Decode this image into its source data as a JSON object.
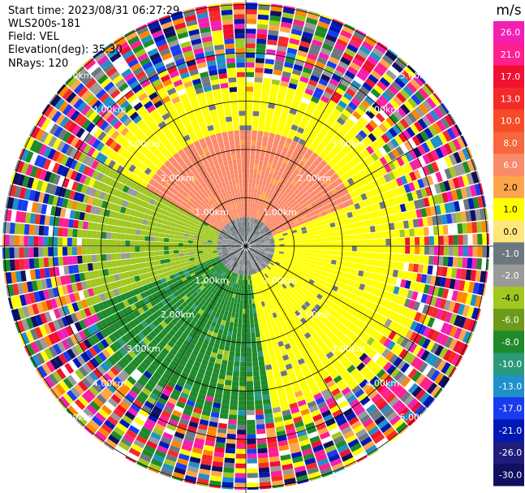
{
  "header": {
    "start_time": "Start time: 2023/08/31 06:27:29",
    "instrument": "WLS200s-181",
    "field": "Field: VEL",
    "elevation": "Elevation(deg): 35.30",
    "nrays": "NRays: 120"
  },
  "colorbar": {
    "unit": "m/s",
    "ticks": [
      "26.0",
      "21.0",
      "17.0",
      "13.0",
      "10.0",
      "8.0",
      "6.0",
      "2.0",
      "1.0",
      "0.0",
      "-1.0",
      "-2.0",
      "-4.0",
      "-6.0",
      "-8.0",
      "-10.0",
      "-13.0",
      "-17.0",
      "-21.0",
      "-26.0",
      "-30.0"
    ],
    "colors": [
      "#f21fb3",
      "#ff1f8f",
      "#f01030",
      "#f42a2a",
      "#f64a28",
      "#f7663c",
      "#fb8a6a",
      "#fca64a",
      "#ffff00",
      "#ffe67a",
      "#6c7880",
      "#9a9a9a",
      "#a0c820",
      "#6e9a1a",
      "#1e8a2a",
      "#2a9a7a",
      "#2090c8",
      "#1a3cf0",
      "#0018b4",
      "#1e1e7a",
      "#101060"
    ]
  },
  "chart_data": {
    "type": "heatmap",
    "title": "",
    "projection": "polar (PPI)",
    "field": "VEL",
    "units": "m/s",
    "nrays": 120,
    "elevation_deg": 35.3,
    "range_ring_labels": [
      "1.00km",
      "2.00km",
      "3.00km",
      "4.00km",
      "5.00km"
    ],
    "rings_km": [
      1,
      2,
      3,
      4,
      5
    ],
    "value_range": [
      -30,
      26
    ],
    "regions": [
      {
        "sector": "north",
        "range_km": [
          0.5,
          2.5
        ],
        "value_ms": 8
      },
      {
        "sector": "north",
        "range_km": [
          2.5,
          3.5
        ],
        "value_ms": 2
      },
      {
        "sector": "east",
        "range_km": [
          0.5,
          3.0
        ],
        "value_ms": 2
      },
      {
        "sector": "south",
        "range_km": [
          0.5,
          2.5
        ],
        "value_ms": -6
      },
      {
        "sector": "west",
        "range_km": [
          0.5,
          3.0
        ],
        "value_ms": -4
      }
    ],
    "noise_beyond_km": 3.5
  }
}
